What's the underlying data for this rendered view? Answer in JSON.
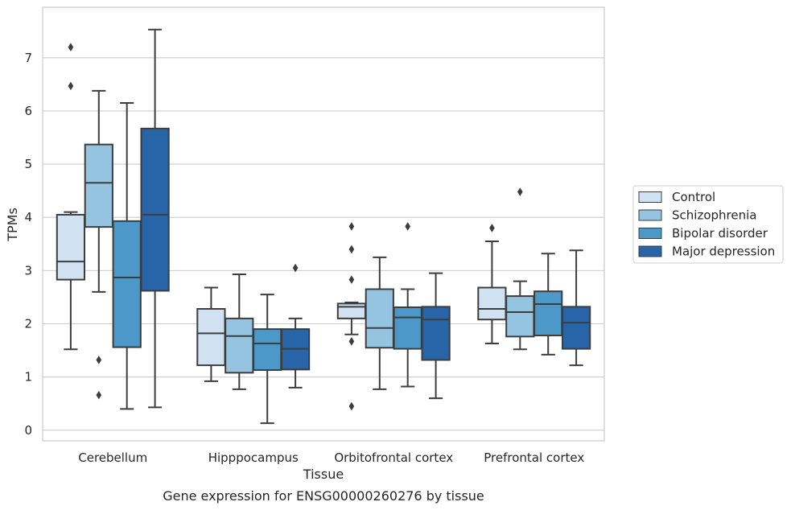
{
  "chart_data": {
    "type": "boxplot",
    "title": "",
    "caption": "Gene expression for ENSG00000260276 by tissue",
    "xlabel": "Tissue",
    "ylabel": "TPMs",
    "ylim": [
      -0.2,
      7.95
    ],
    "yticks": [
      0,
      1,
      2,
      3,
      4,
      5,
      6,
      7
    ],
    "grid": "horizontal",
    "legend_placement": "right",
    "categories": [
      "Cerebellum",
      "Hipppocampus",
      "Orbitofrontal cortex",
      "Prefrontal cortex"
    ],
    "series": [
      {
        "name": "Control",
        "color": "#d0e1f2",
        "boxes": [
          {
            "whislo": 1.52,
            "q1": 2.83,
            "med": 3.17,
            "q3": 4.05,
            "whishi": 4.1,
            "fliers": [
              7.2,
              6.47
            ]
          },
          {
            "whislo": 0.92,
            "q1": 1.22,
            "med": 1.82,
            "q3": 2.28,
            "whishi": 2.68,
            "fliers": []
          },
          {
            "whislo": 1.8,
            "q1": 2.1,
            "med": 2.32,
            "q3": 2.38,
            "whishi": 2.4,
            "fliers": [
              3.83,
              3.4,
              2.83,
              1.67,
              0.45
            ]
          },
          {
            "whislo": 1.63,
            "q1": 2.08,
            "med": 2.28,
            "q3": 2.68,
            "whishi": 3.55,
            "fliers": [
              3.8
            ]
          }
        ]
      },
      {
        "name": "Schizophrenia",
        "color": "#94c4df",
        "boxes": [
          {
            "whislo": 2.6,
            "q1": 3.82,
            "med": 4.65,
            "q3": 5.37,
            "whishi": 6.38,
            "fliers": [
              1.32,
              0.66
            ]
          },
          {
            "whislo": 0.77,
            "q1": 1.08,
            "med": 1.77,
            "q3": 2.1,
            "whishi": 2.93,
            "fliers": []
          },
          {
            "whislo": 0.77,
            "q1": 1.55,
            "med": 1.92,
            "q3": 2.65,
            "whishi": 3.25,
            "fliers": []
          },
          {
            "whislo": 1.52,
            "q1": 1.76,
            "med": 2.22,
            "q3": 2.52,
            "whishi": 2.8,
            "fliers": [
              4.48
            ]
          }
        ]
      },
      {
        "name": "Bipolar disorder",
        "color": "#4b98c9",
        "boxes": [
          {
            "whislo": 0.4,
            "q1": 1.56,
            "med": 2.87,
            "q3": 3.93,
            "whishi": 6.15,
            "fliers": []
          },
          {
            "whislo": 0.13,
            "q1": 1.13,
            "med": 1.63,
            "q3": 1.9,
            "whishi": 2.55,
            "fliers": []
          },
          {
            "whislo": 0.82,
            "q1": 1.53,
            "med": 2.12,
            "q3": 2.31,
            "whishi": 2.65,
            "fliers": [
              3.83
            ]
          },
          {
            "whislo": 1.42,
            "q1": 1.78,
            "med": 2.37,
            "q3": 2.61,
            "whishi": 3.32,
            "fliers": []
          }
        ]
      },
      {
        "name": "Major depression",
        "color": "#2865a8",
        "boxes": [
          {
            "whislo": 0.43,
            "q1": 2.62,
            "med": 4.05,
            "q3": 5.67,
            "whishi": 7.53,
            "fliers": []
          },
          {
            "whislo": 0.8,
            "q1": 1.14,
            "med": 1.53,
            "q3": 1.9,
            "whishi": 2.1,
            "fliers": [
              3.05
            ]
          },
          {
            "whislo": 0.6,
            "q1": 1.32,
            "med": 2.08,
            "q3": 2.32,
            "whishi": 2.95,
            "fliers": []
          },
          {
            "whislo": 1.22,
            "q1": 1.53,
            "med": 2.02,
            "q3": 2.32,
            "whishi": 3.38,
            "fliers": []
          }
        ]
      }
    ]
  }
}
